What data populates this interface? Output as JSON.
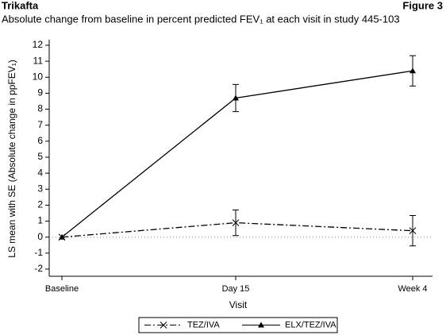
{
  "chart_data": {
    "type": "line",
    "header_left": "Trikafta",
    "header_right": "Figure 3",
    "title": "Absolute change from baseline in percent predicted FEV₁ at each visit in study 445-103",
    "x_label": "Visit",
    "y_label": "LS mean with SE (Absolute change in ppFEV₁)",
    "categories": [
      "Baseline",
      "Day 15",
      "Week 4"
    ],
    "series": [
      {
        "name": "TEZ/IVA",
        "color": "#000000",
        "line_style": "dashdot",
        "marker": "x",
        "values": [
          0,
          0.9,
          0.4
        ],
        "errors": [
          0,
          0.8,
          0.95
        ]
      },
      {
        "name": "ELX/TEZ/IVA",
        "color": "#000000",
        "line_style": "solid",
        "marker": "triangle",
        "values": [
          0,
          8.7,
          10.4
        ],
        "errors": [
          0,
          0.85,
          0.95
        ]
      }
    ],
    "ylim": [
      -2,
      12
    ],
    "yticks": [
      -2,
      -1,
      0,
      1,
      2,
      3,
      4,
      5,
      6,
      7,
      8,
      9,
      10,
      11,
      12
    ],
    "reference_line": 0,
    "legend": "bottom"
  }
}
